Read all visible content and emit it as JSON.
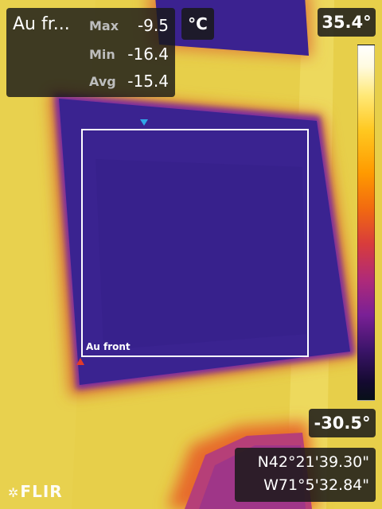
{
  "measurement": {
    "area_label": "Au fr...",
    "unit": "°C",
    "stats": [
      {
        "key": "Max",
        "value": "-9.5"
      },
      {
        "key": "Min",
        "value": "-16.4"
      },
      {
        "key": "Avg",
        "value": "-15.4"
      }
    ]
  },
  "scale": {
    "max_label": "35.4°",
    "min_label": "-30.5°"
  },
  "roi": {
    "label": "Au front"
  },
  "gps": {
    "lat": "N42°21'39.30\"",
    "lon": "W71°5'32.84\""
  },
  "brand": {
    "logo_text": "FLIR"
  },
  "colors": {
    "background_warm": "#e8d44a",
    "cold_region": "#3a2390",
    "roi_outline": "#ffffff",
    "cold_marker": "#2fa6e8",
    "hot_marker": "#e03a2a"
  }
}
